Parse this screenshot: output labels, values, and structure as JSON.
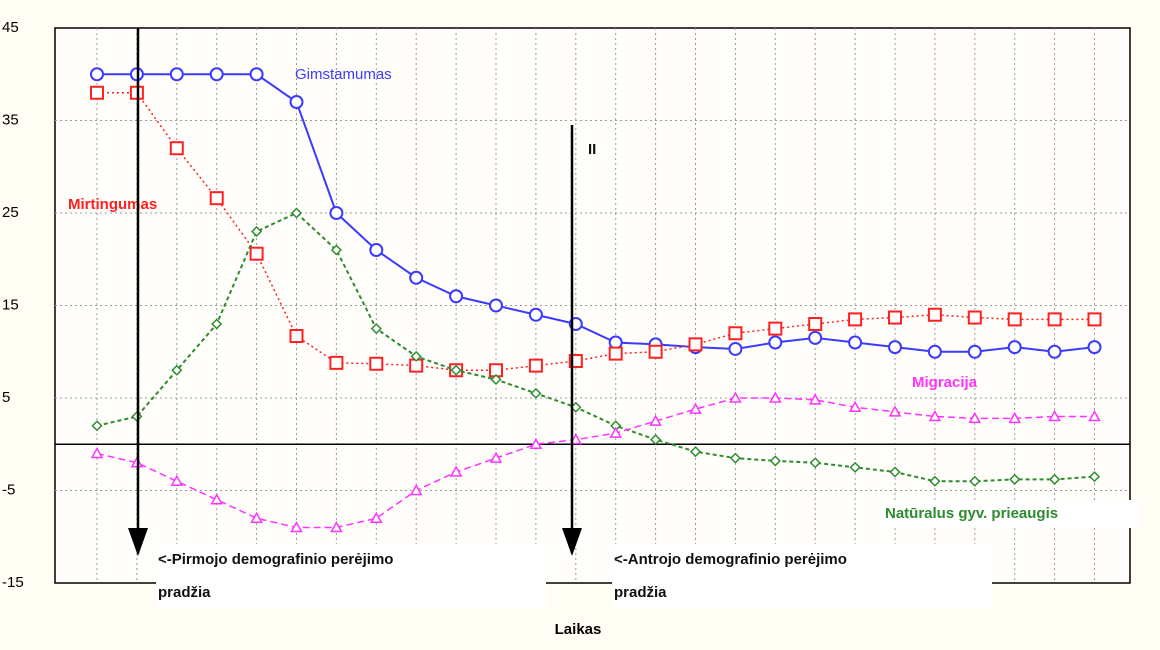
{
  "chart_data": {
    "type": "line",
    "x_label": "Laikas",
    "categories": [
      null,
      null,
      null,
      null,
      null,
      null,
      null,
      null,
      null,
      null,
      null,
      null,
      null,
      null,
      null,
      null,
      null,
      null,
      null,
      null,
      null,
      null,
      null,
      null,
      null,
      null
    ],
    "ylim": [
      -15,
      45
    ],
    "yticks": [
      -15,
      -5,
      5,
      15,
      25,
      35,
      45
    ],
    "grid": true,
    "series": [
      {
        "name": "Gimstamumas",
        "color": "#3b3bff",
        "values": [
          40,
          40,
          40,
          40,
          40,
          37,
          25,
          21,
          18,
          16,
          15,
          14,
          13,
          11,
          10.8,
          10.5,
          10.3,
          11,
          11.5,
          11,
          10.5,
          10,
          10,
          10.5,
          10,
          10.5
        ]
      },
      {
        "name": "Mirtingumas",
        "color": "#ff2020",
        "values": [
          38,
          38,
          32,
          26.6,
          20.6,
          11.7,
          8.8,
          8.7,
          8.5,
          8,
          8,
          8.5,
          9,
          9.8,
          10,
          10.8,
          12,
          12.5,
          13,
          13.5,
          13.7,
          14,
          13.7,
          13.5,
          13.5,
          13.5
        ]
      },
      {
        "name": "Natūralus gyv. prieaugis",
        "color": "#2e8b2e",
        "values": [
          2,
          3,
          8,
          13,
          23,
          25,
          21,
          12.5,
          9.5,
          8,
          7,
          5.5,
          4,
          2,
          0.5,
          -0.8,
          -1.5,
          -1.8,
          -2,
          -2.5,
          -3,
          -4,
          -4,
          -3.8,
          -3.8,
          -3.5
        ]
      },
      {
        "name": "Migracija",
        "color": "#ff33ff",
        "values": [
          -1,
          -2,
          -4,
          -6,
          -8,
          -9,
          -9,
          -8,
          -5,
          -3,
          -1.5,
          0,
          0.5,
          1.2,
          2.5,
          3.8,
          5,
          5,
          4.8,
          4,
          3.5,
          3,
          2.8,
          2.8,
          3,
          3
        ]
      }
    ],
    "annotations": [
      {
        "lines": [
          "<-Pirmojo demografinio perėjimo",
          "pradžia"
        ]
      },
      {
        "lines": [
          "<-Antrojo demografinio perėjimo",
          "pradžia"
        ]
      },
      {
        "lines": [
          "II"
        ]
      }
    ]
  }
}
